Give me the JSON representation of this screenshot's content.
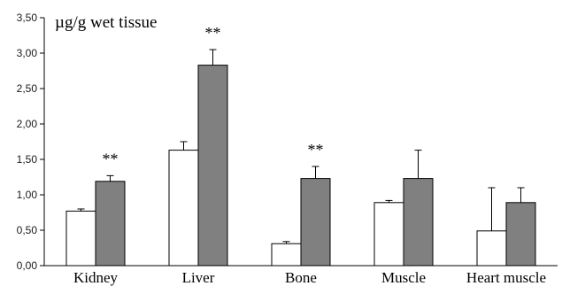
{
  "chart_data": {
    "type": "bar",
    "title": "",
    "unit_label": "µg/g wet tissue",
    "xlabel": "",
    "ylabel": "",
    "ylim": [
      0,
      3.5
    ],
    "y_ticks": [
      "0,00",
      "0,50",
      "1,00",
      "1,50",
      "2,00",
      "2,50",
      "3,00",
      "3,50"
    ],
    "grid": false,
    "legend": "none",
    "categories": [
      "Kidney",
      "Liver",
      "Bone",
      "Muscle",
      "Heart muscle"
    ],
    "series": [
      {
        "color": "#ffffff",
        "values": [
          0.77,
          1.63,
          0.31,
          0.89,
          0.49
        ],
        "errors": [
          0.03,
          0.12,
          0.03,
          0.03,
          0.61
        ]
      },
      {
        "color": "#808080",
        "values": [
          1.19,
          2.83,
          1.23,
          1.23,
          0.89
        ],
        "errors": [
          0.08,
          0.22,
          0.17,
          0.4,
          0.21
        ]
      }
    ],
    "significance": [
      "**",
      "**",
      "**",
      "",
      ""
    ]
  }
}
